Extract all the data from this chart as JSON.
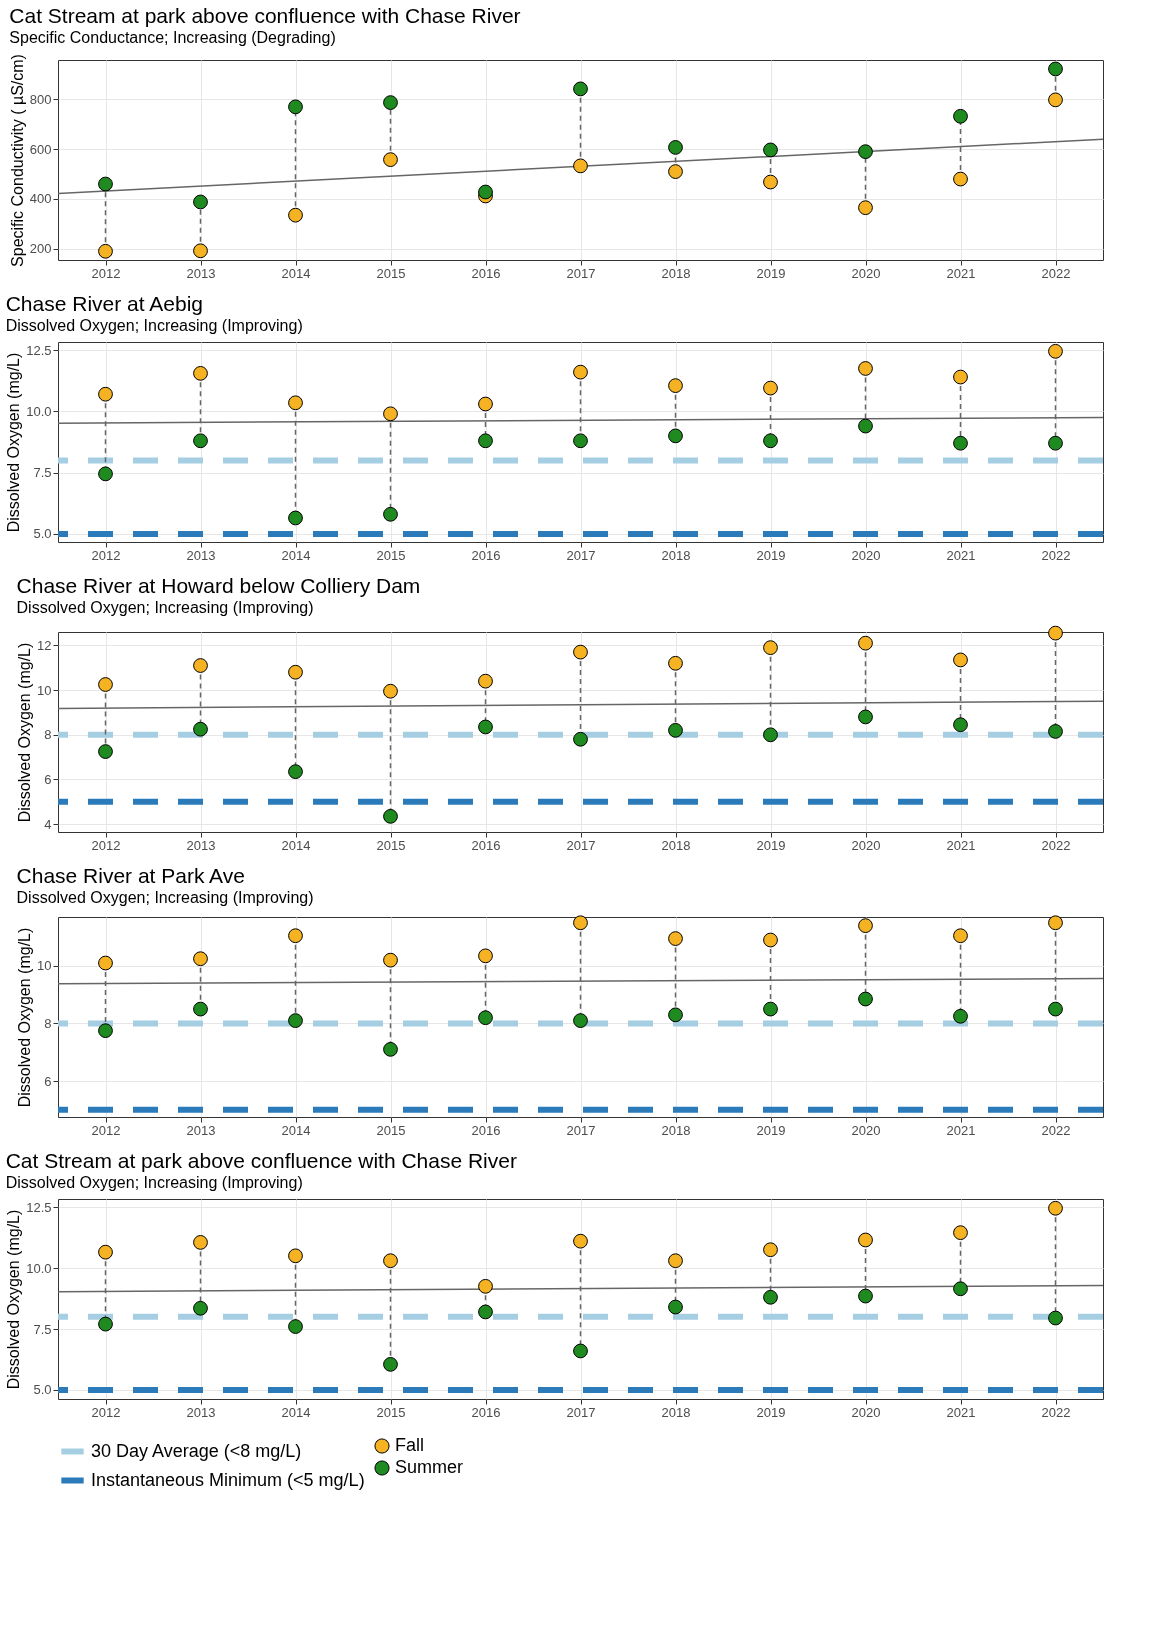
{
  "chart_data": [
    {
      "type": "scatter",
      "title": "Cat Stream at park above confluence with Chase River",
      "subtitle": "Specific Conductance; Increasing (Degrading)",
      "ylabel": "Specific Conductivity ( µS/cm)",
      "x": [
        2012,
        2013,
        2014,
        2015,
        2016,
        2017,
        2018,
        2019,
        2020,
        2021,
        2022
      ],
      "xlim": [
        2011.5,
        2022.5
      ],
      "xticks": [
        2012,
        2013,
        2014,
        2015,
        2016,
        2017,
        2018,
        2019,
        2020,
        2021,
        2022
      ],
      "ylim": [
        155,
        958
      ],
      "yticks": [
        200,
        400,
        600,
        800
      ],
      "grid": true,
      "marker": "circle",
      "series": [
        {
          "type": "line",
          "marker": "none",
          "line_style": "dashed",
          "color": "#666666",
          "x": [
            2012,
            2012
          ],
          "values": [
            190,
            460
          ]
        },
        {
          "type": "line",
          "marker": "none",
          "line_style": "dashed",
          "color": "#666666",
          "x": [
            2013,
            2013
          ],
          "values": [
            192,
            388
          ]
        },
        {
          "type": "line",
          "marker": "none",
          "line_style": "dashed",
          "color": "#666666",
          "x": [
            2014,
            2014
          ],
          "values": [
            335,
            770
          ]
        },
        {
          "type": "line",
          "marker": "none",
          "line_style": "dashed",
          "color": "#666666",
          "x": [
            2015,
            2015
          ],
          "values": [
            558,
            787
          ]
        },
        {
          "type": "line",
          "marker": "none",
          "line_style": "dashed",
          "color": "#666666",
          "x": [
            2017,
            2017
          ],
          "values": [
            533,
            842
          ]
        },
        {
          "type": "line",
          "marker": "none",
          "line_style": "dashed",
          "color": "#666666",
          "x": [
            2018,
            2018
          ],
          "values": [
            510,
            607
          ]
        },
        {
          "type": "line",
          "marker": "none",
          "line_style": "dashed",
          "color": "#666666",
          "x": [
            2019,
            2019
          ],
          "values": [
            468,
            597
          ]
        },
        {
          "type": "line",
          "marker": "none",
          "line_style": "dashed",
          "color": "#666666",
          "x": [
            2020,
            2020
          ],
          "values": [
            365,
            590
          ]
        },
        {
          "type": "line",
          "marker": "none",
          "line_style": "dashed",
          "color": "#666666",
          "x": [
            2021,
            2021
          ],
          "values": [
            480,
            732
          ]
        },
        {
          "type": "line",
          "marker": "none",
          "line_style": "dashed",
          "color": "#666666",
          "x": [
            2022,
            2022
          ],
          "values": [
            798,
            922
          ]
        },
        {
          "type": "line",
          "marker": "none",
          "color": "#666666",
          "x": [
            2011.5,
            2022.5
          ],
          "values": [
            422,
            640
          ]
        },
        {
          "color": "#f5b324",
          "values": [
            190,
            192,
            335,
            558,
            412,
            533,
            510,
            468,
            365,
            480,
            798
          ]
        },
        {
          "color": "#1f8a1f",
          "values": [
            460,
            388,
            770,
            787,
            428,
            842,
            607,
            597,
            590,
            732,
            922
          ]
        }
      ]
    },
    {
      "type": "scatter",
      "title": "Chase River at Aebig",
      "subtitle": "Dissolved Oxygen; Increasing (Improving)",
      "ylabel": "Dissolved Oxygen (mg/L)",
      "x": [
        2012,
        2013,
        2014,
        2015,
        2016,
        2017,
        2018,
        2019,
        2020,
        2021,
        2022
      ],
      "xlim": [
        2011.5,
        2022.5
      ],
      "xticks": [
        2012,
        2013,
        2014,
        2015,
        2016,
        2017,
        2018,
        2019,
        2020,
        2021,
        2022
      ],
      "ylim": [
        4.67,
        12.83
      ],
      "yticks": [
        {
          "value": 5,
          "label": "5.0"
        },
        {
          "value": 7.5,
          "label": "7.5"
        },
        {
          "value": 10,
          "label": "10.0"
        },
        {
          "value": 12.5,
          "label": "12.5"
        }
      ],
      "grid": true,
      "marker": "circle",
      "series": [
        {
          "type": "line",
          "marker": "none",
          "line_style": "dashed",
          "color": "#666666",
          "x": [
            2012,
            2012
          ],
          "values": [
            10.7,
            7.45
          ]
        },
        {
          "type": "line",
          "marker": "none",
          "line_style": "dashed",
          "color": "#666666",
          "x": [
            2013,
            2013
          ],
          "values": [
            11.55,
            8.8
          ]
        },
        {
          "type": "line",
          "marker": "none",
          "line_style": "dashed",
          "color": "#666666",
          "x": [
            2014,
            2014
          ],
          "values": [
            10.35,
            5.65
          ]
        },
        {
          "type": "line",
          "marker": "none",
          "line_style": "dashed",
          "color": "#666666",
          "x": [
            2015,
            2015
          ],
          "values": [
            9.9,
            5.8
          ]
        },
        {
          "type": "line",
          "marker": "none",
          "line_style": "dashed",
          "color": "#666666",
          "x": [
            2016,
            2016
          ],
          "values": [
            10.3,
            8.8
          ]
        },
        {
          "type": "line",
          "marker": "none",
          "line_style": "dashed",
          "color": "#666666",
          "x": [
            2017,
            2017
          ],
          "values": [
            11.6,
            8.8
          ]
        },
        {
          "type": "line",
          "marker": "none",
          "line_style": "dashed",
          "color": "#666666",
          "x": [
            2018,
            2018
          ],
          "values": [
            11.05,
            9.0
          ]
        },
        {
          "type": "line",
          "marker": "none",
          "line_style": "dashed",
          "color": "#666666",
          "x": [
            2019,
            2019
          ],
          "values": [
            10.95,
            8.8
          ]
        },
        {
          "type": "line",
          "marker": "none",
          "line_style": "dashed",
          "color": "#666666",
          "x": [
            2020,
            2020
          ],
          "values": [
            11.75,
            9.4
          ]
        },
        {
          "type": "line",
          "marker": "none",
          "line_style": "dashed",
          "color": "#666666",
          "x": [
            2021,
            2021
          ],
          "values": [
            11.4,
            8.7
          ]
        },
        {
          "type": "line",
          "marker": "none",
          "line_style": "dashed",
          "color": "#666666",
          "x": [
            2022,
            2022
          ],
          "values": [
            12.45,
            8.7
          ]
        },
        {
          "type": "line",
          "marker": "none",
          "color": "#666666",
          "x": [
            2011.5,
            2022.5
          ],
          "values": [
            9.52,
            9.75
          ]
        },
        {
          "color": "#f5b324",
          "values": [
            10.7,
            11.55,
            10.35,
            9.9,
            10.3,
            11.6,
            11.05,
            10.95,
            11.75,
            11.4,
            12.45
          ]
        },
        {
          "color": "#1f8a1f",
          "values": [
            7.45,
            8.8,
            5.65,
            5.8,
            8.8,
            8.8,
            9.0,
            8.8,
            9.4,
            8.7,
            8.7
          ]
        }
      ],
      "ref_lines": [
        {
          "axis": "y",
          "value": 8,
          "color": "#a6cee3",
          "line_style": "dashed"
        },
        {
          "axis": "y",
          "value": 5,
          "color": "#2b7bba",
          "line_style": "dashed"
        }
      ]
    },
    {
      "type": "scatter",
      "title": "Chase River at Howard below Colliery Dam",
      "subtitle": "Dissolved Oxygen; Increasing (Improving)",
      "ylabel": "Dissolved Oxygen (mg/L)",
      "x": [
        2012,
        2013,
        2014,
        2015,
        2016,
        2017,
        2018,
        2019,
        2020,
        2021,
        2022
      ],
      "xlim": [
        2011.5,
        2022.5
      ],
      "xticks": [
        2012,
        2013,
        2014,
        2015,
        2016,
        2017,
        2018,
        2019,
        2020,
        2021,
        2022
      ],
      "ylim": [
        3.65,
        12.6
      ],
      "yticks": [
        4,
        6,
        8,
        10,
        12
      ],
      "grid": true,
      "marker": "circle",
      "series": [
        {
          "type": "line",
          "marker": "none",
          "line_style": "dashed",
          "color": "#666666",
          "x": [
            2012,
            2012
          ],
          "values": [
            10.25,
            7.25
          ]
        },
        {
          "type": "line",
          "marker": "none",
          "line_style": "dashed",
          "color": "#666666",
          "x": [
            2013,
            2013
          ],
          "values": [
            11.1,
            8.25
          ]
        },
        {
          "type": "line",
          "marker": "none",
          "line_style": "dashed",
          "color": "#666666",
          "x": [
            2014,
            2014
          ],
          "values": [
            10.8,
            6.35
          ]
        },
        {
          "type": "line",
          "marker": "none",
          "line_style": "dashed",
          "color": "#666666",
          "x": [
            2015,
            2015
          ],
          "values": [
            9.95,
            4.35
          ]
        },
        {
          "type": "line",
          "marker": "none",
          "line_style": "dashed",
          "color": "#666666",
          "x": [
            2016,
            2016
          ],
          "values": [
            10.4,
            8.35
          ]
        },
        {
          "type": "line",
          "marker": "none",
          "line_style": "dashed",
          "color": "#666666",
          "x": [
            2017,
            2017
          ],
          "values": [
            11.7,
            7.8
          ]
        },
        {
          "type": "line",
          "marker": "none",
          "line_style": "dashed",
          "color": "#666666",
          "x": [
            2018,
            2018
          ],
          "values": [
            11.2,
            8.2
          ]
        },
        {
          "type": "line",
          "marker": "none",
          "line_style": "dashed",
          "color": "#666666",
          "x": [
            2019,
            2019
          ],
          "values": [
            11.9,
            8.0
          ]
        },
        {
          "type": "line",
          "marker": "none",
          "line_style": "dashed",
          "color": "#666666",
          "x": [
            2020,
            2020
          ],
          "values": [
            12.1,
            8.8
          ]
        },
        {
          "type": "line",
          "marker": "none",
          "line_style": "dashed",
          "color": "#666666",
          "x": [
            2021,
            2021
          ],
          "values": [
            11.35,
            8.45
          ]
        },
        {
          "type": "line",
          "marker": "none",
          "line_style": "dashed",
          "color": "#666666",
          "x": [
            2022,
            2022
          ],
          "values": [
            12.55,
            8.15
          ]
        },
        {
          "type": "line",
          "marker": "none",
          "color": "#666666",
          "x": [
            2011.5,
            2022.5
          ],
          "values": [
            9.18,
            9.5
          ]
        },
        {
          "color": "#f5b324",
          "values": [
            10.25,
            11.1,
            10.8,
            9.95,
            10.4,
            11.7,
            11.2,
            11.9,
            12.1,
            11.35,
            12.55
          ]
        },
        {
          "color": "#1f8a1f",
          "values": [
            7.25,
            8.25,
            6.35,
            4.35,
            8.35,
            7.8,
            8.2,
            8.0,
            8.8,
            8.45,
            8.15
          ]
        }
      ],
      "ref_lines": [
        {
          "axis": "y",
          "value": 8,
          "color": "#a6cee3",
          "line_style": "dashed"
        },
        {
          "axis": "y",
          "value": 5,
          "color": "#2b7bba",
          "line_style": "dashed"
        }
      ]
    },
    {
      "type": "scatter",
      "title": "Chase River at Park Ave",
      "subtitle": "Dissolved Oxygen; Increasing (Improving)",
      "ylabel": "Dissolved Oxygen (mg/L)",
      "x": [
        2012,
        2013,
        2014,
        2015,
        2016,
        2017,
        2018,
        2019,
        2020,
        2021,
        2022
      ],
      "xlim": [
        2011.5,
        2022.5
      ],
      "xticks": [
        2012,
        2013,
        2014,
        2015,
        2016,
        2017,
        2018,
        2019,
        2020,
        2021,
        2022
      ],
      "ylim": [
        4.75,
        11.7
      ],
      "yticks": [
        6,
        8,
        10
      ],
      "grid": true,
      "marker": "circle",
      "series": [
        {
          "type": "line",
          "marker": "none",
          "line_style": "dashed",
          "color": "#666666",
          "x": [
            2012,
            2012
          ],
          "values": [
            10.1,
            7.75
          ]
        },
        {
          "type": "line",
          "marker": "none",
          "line_style": "dashed",
          "color": "#666666",
          "x": [
            2013,
            2013
          ],
          "values": [
            10.25,
            8.5
          ]
        },
        {
          "type": "line",
          "marker": "none",
          "line_style": "dashed",
          "color": "#666666",
          "x": [
            2014,
            2014
          ],
          "values": [
            11.05,
            8.1
          ]
        },
        {
          "type": "line",
          "marker": "none",
          "line_style": "dashed",
          "color": "#666666",
          "x": [
            2015,
            2015
          ],
          "values": [
            10.2,
            7.1
          ]
        },
        {
          "type": "line",
          "marker": "none",
          "line_style": "dashed",
          "color": "#666666",
          "x": [
            2016,
            2016
          ],
          "values": [
            10.35,
            8.2
          ]
        },
        {
          "type": "line",
          "marker": "none",
          "line_style": "dashed",
          "color": "#666666",
          "x": [
            2017,
            2017
          ],
          "values": [
            11.5,
            8.1
          ]
        },
        {
          "type": "line",
          "marker": "none",
          "line_style": "dashed",
          "color": "#666666",
          "x": [
            2018,
            2018
          ],
          "values": [
            10.95,
            8.3
          ]
        },
        {
          "type": "line",
          "marker": "none",
          "line_style": "dashed",
          "color": "#666666",
          "x": [
            2019,
            2019
          ],
          "values": [
            10.9,
            8.5
          ]
        },
        {
          "type": "line",
          "marker": "none",
          "line_style": "dashed",
          "color": "#666666",
          "x": [
            2020,
            2020
          ],
          "values": [
            11.4,
            8.85
          ]
        },
        {
          "type": "line",
          "marker": "none",
          "line_style": "dashed",
          "color": "#666666",
          "x": [
            2021,
            2021
          ],
          "values": [
            11.05,
            8.25
          ]
        },
        {
          "type": "line",
          "marker": "none",
          "line_style": "dashed",
          "color": "#666666",
          "x": [
            2022,
            2022
          ],
          "values": [
            11.5,
            8.5
          ]
        },
        {
          "type": "line",
          "marker": "none",
          "color": "#666666",
          "x": [
            2011.5,
            2022.5
          ],
          "values": [
            9.38,
            9.56
          ]
        },
        {
          "color": "#f5b324",
          "values": [
            10.1,
            10.25,
            11.05,
            10.2,
            10.35,
            11.5,
            10.95,
            10.9,
            11.4,
            11.05,
            11.5
          ]
        },
        {
          "color": "#1f8a1f",
          "values": [
            7.75,
            8.5,
            8.1,
            7.1,
            8.2,
            8.1,
            8.3,
            8.5,
            8.85,
            8.25,
            8.5
          ]
        }
      ],
      "ref_lines": [
        {
          "axis": "y",
          "value": 8,
          "color": "#a6cee3",
          "line_style": "dashed"
        },
        {
          "axis": "y",
          "value": 5,
          "color": "#2b7bba",
          "line_style": "dashed"
        }
      ]
    },
    {
      "type": "scatter",
      "title": "Cat Stream at park above confluence with Chase River",
      "subtitle": "Dissolved Oxygen; Increasing (Improving)",
      "ylabel": "Dissolved Oxygen (mg/L)",
      "x": [
        2012,
        2013,
        2014,
        2015,
        2016,
        2017,
        2018,
        2019,
        2020,
        2021,
        2022
      ],
      "xlim": [
        2011.5,
        2022.5
      ],
      "xticks": [
        2012,
        2013,
        2014,
        2015,
        2016,
        2017,
        2018,
        2019,
        2020,
        2021,
        2022
      ],
      "ylim": [
        4.63,
        12.83
      ],
      "yticks": [
        {
          "value": 5,
          "label": "5.0"
        },
        {
          "value": 7.5,
          "label": "7.5"
        },
        {
          "value": 10,
          "label": "10.0"
        },
        {
          "value": 12.5,
          "label": "12.5"
        }
      ],
      "grid": true,
      "marker": "circle",
      "legend": "bottom",
      "series": [
        {
          "type": "line",
          "marker": "none",
          "line_style": "dashed",
          "color": "#666666",
          "x": [
            2012,
            2012
          ],
          "values": [
            10.65,
            7.7
          ]
        },
        {
          "type": "line",
          "marker": "none",
          "line_style": "dashed",
          "color": "#666666",
          "x": [
            2013,
            2013
          ],
          "values": [
            11.05,
            8.35
          ]
        },
        {
          "type": "line",
          "marker": "none",
          "line_style": "dashed",
          "color": "#666666",
          "x": [
            2014,
            2014
          ],
          "values": [
            10.5,
            7.6
          ]
        },
        {
          "type": "line",
          "marker": "none",
          "line_style": "dashed",
          "color": "#666666",
          "x": [
            2015,
            2015
          ],
          "values": [
            10.3,
            6.05
          ]
        },
        {
          "type": "line",
          "marker": "none",
          "line_style": "dashed",
          "color": "#666666",
          "x": [
            2016,
            2016
          ],
          "values": [
            9.25,
            8.2
          ]
        },
        {
          "type": "line",
          "marker": "none",
          "line_style": "dashed",
          "color": "#666666",
          "x": [
            2017,
            2017
          ],
          "values": [
            11.1,
            6.6
          ]
        },
        {
          "type": "line",
          "marker": "none",
          "line_style": "dashed",
          "color": "#666666",
          "x": [
            2018,
            2018
          ],
          "values": [
            10.3,
            8.4
          ]
        },
        {
          "type": "line",
          "marker": "none",
          "line_style": "dashed",
          "color": "#666666",
          "x": [
            2019,
            2019
          ],
          "values": [
            10.75,
            8.8
          ]
        },
        {
          "type": "line",
          "marker": "none",
          "line_style": "dashed",
          "color": "#666666",
          "x": [
            2020,
            2020
          ],
          "values": [
            11.15,
            8.85
          ]
        },
        {
          "type": "line",
          "marker": "none",
          "line_style": "dashed",
          "color": "#666666",
          "x": [
            2021,
            2021
          ],
          "values": [
            11.45,
            9.15
          ]
        },
        {
          "type": "line",
          "marker": "none",
          "line_style": "dashed",
          "color": "#666666",
          "x": [
            2022,
            2022
          ],
          "values": [
            12.45,
            7.95
          ]
        },
        {
          "type": "line",
          "marker": "none",
          "color": "#666666",
          "x": [
            2011.5,
            2022.5
          ],
          "values": [
            9.03,
            9.28
          ]
        },
        {
          "name": "Fall",
          "color": "#f5b324",
          "values": [
            10.65,
            11.05,
            10.5,
            10.3,
            9.25,
            11.1,
            10.3,
            10.75,
            11.15,
            11.45,
            12.45
          ]
        },
        {
          "name": "Summer",
          "color": "#1f8a1f",
          "values": [
            7.7,
            8.35,
            7.6,
            6.05,
            8.2,
            6.6,
            8.4,
            8.8,
            8.85,
            9.15,
            7.95
          ]
        }
      ],
      "ref_lines": [
        {
          "axis": "y",
          "value": 8,
          "label": "30 Day Average (<8 mg/L)",
          "color": "#a6cee3",
          "line_style": "dashed"
        },
        {
          "axis": "y",
          "value": 5,
          "label": "Instantaneous Minimum (<5 mg/L)",
          "color": "#2b7bba",
          "line_style": "dashed"
        }
      ]
    }
  ]
}
